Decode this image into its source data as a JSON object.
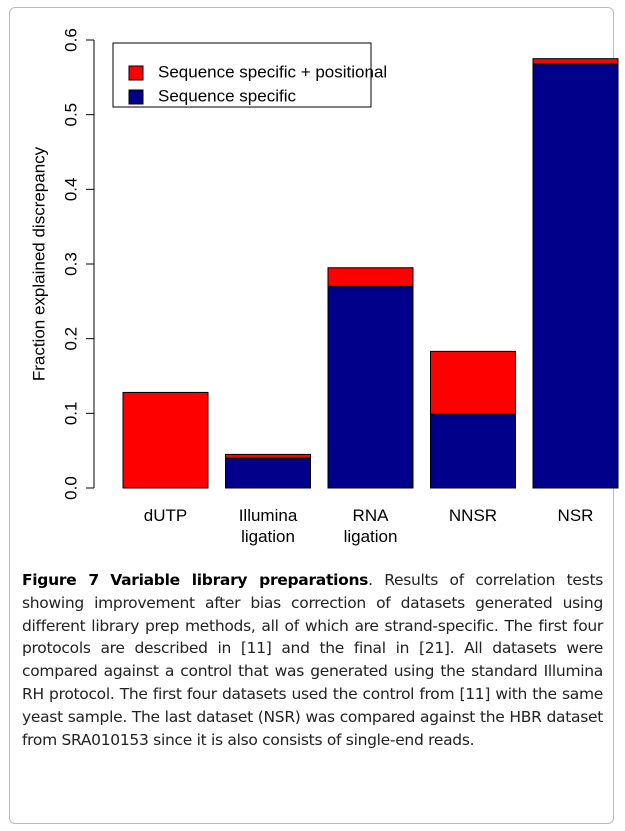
{
  "chart_data": {
    "type": "stacked-bar",
    "y_label": "Fraction explained discrepancy",
    "categories": [
      "dUTP",
      "Illumina ligation",
      "RNA ligation",
      "NNSR",
      "NSR"
    ],
    "series": [
      {
        "name": "Sequence specific + positional",
        "color": "#ff0000",
        "values": [
          0.128,
          0.005,
          0.025,
          0.084,
          0.007
        ]
      },
      {
        "name": "Sequence specific",
        "color": "#00008b",
        "values": [
          0,
          0.04,
          0.27,
          0.099,
          0.568
        ]
      }
    ],
    "ylim": [
      0,
      0.6
    ],
    "yticks": [
      {
        "value": 0,
        "label": "0.0"
      },
      0.1,
      0.2,
      0.3,
      0.4,
      0.5,
      0.6
    ],
    "legend": "top-left"
  },
  "caption": {
    "label": "Figure 7",
    "title": "Variable library preparations",
    "text": ". Results of correlation tests showing improvement after bias correction of datasets generated using different library prep methods, all of which are strand-specific. The first four protocols are described in [11] and the final in [21]. All datasets were compared against a control that was generated using the standard Illumina RH protocol. The first four datasets used the control from [11] with the same yeast sample. The last dataset (NSR) was compared against the HBR dataset from SRA010153 since it is also consists of single-end reads."
  }
}
